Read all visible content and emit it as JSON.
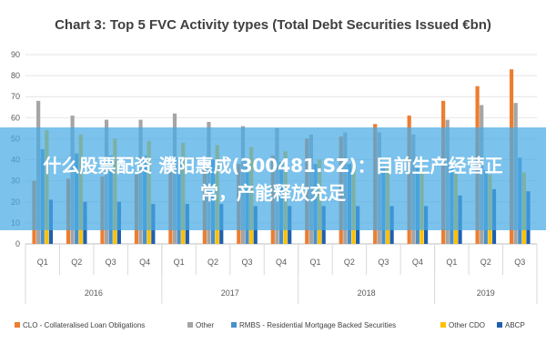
{
  "chart_data": {
    "type": "bar",
    "title": "Chart 3: Top 5 FVC Activity types (Total Debt Securities Issued €bn)",
    "xlabel": "",
    "ylabel": "",
    "ylim": [
      0,
      90
    ],
    "yticks": [
      0,
      10,
      20,
      30,
      40,
      50,
      60,
      70,
      80,
      90
    ],
    "grid": true,
    "legend_position": "bottom",
    "categories": [
      "Q1",
      "Q2",
      "Q3",
      "Q4",
      "Q1",
      "Q2",
      "Q3",
      "Q4",
      "Q1",
      "Q2",
      "Q3",
      "Q4",
      "Q1",
      "Q2",
      "Q3"
    ],
    "year_groups": [
      {
        "label": "2016",
        "count": 4
      },
      {
        "label": "2017",
        "count": 4
      },
      {
        "label": "2018",
        "count": 4
      },
      {
        "label": "2019",
        "count": 3
      }
    ],
    "series": [
      {
        "name": "CLO - Collateralised Loan Obligations",
        "color": "#ED7D31",
        "values": [
          30,
          31,
          32,
          33,
          34,
          36,
          38,
          42,
          50,
          51,
          57,
          61,
          68,
          75,
          83
        ]
      },
      {
        "name": "Other",
        "color": "#A5A5A5",
        "values": [
          68,
          61,
          59,
          59,
          62,
          58,
          56,
          55,
          52,
          53,
          53,
          52,
          59,
          66,
          67
        ]
      },
      {
        "name": "RMBS - Residential Mortgage Backed Securities",
        "color": "#4A90C8",
        "values": [
          45,
          43,
          42,
          42,
          41,
          40,
          40,
          39,
          38,
          38,
          37,
          36,
          36,
          35,
          41
        ]
      },
      {
        "name": "Other CDO",
        "color": "#FFC000",
        "values": [
          54,
          52,
          50,
          49,
          48,
          47,
          46,
          44,
          40,
          39,
          37,
          35,
          34,
          33,
          34
        ]
      },
      {
        "name": "ABCP",
        "color": "#1F5FAE",
        "values": [
          21,
          20,
          20,
          19,
          19,
          19,
          18,
          18,
          18,
          18,
          18,
          18,
          23,
          26,
          25
        ]
      }
    ]
  },
  "overlay": {
    "text": "什么股票配资 濮阳惠成(300481.SZ)：目前生产经营正常，产能释放充足"
  }
}
